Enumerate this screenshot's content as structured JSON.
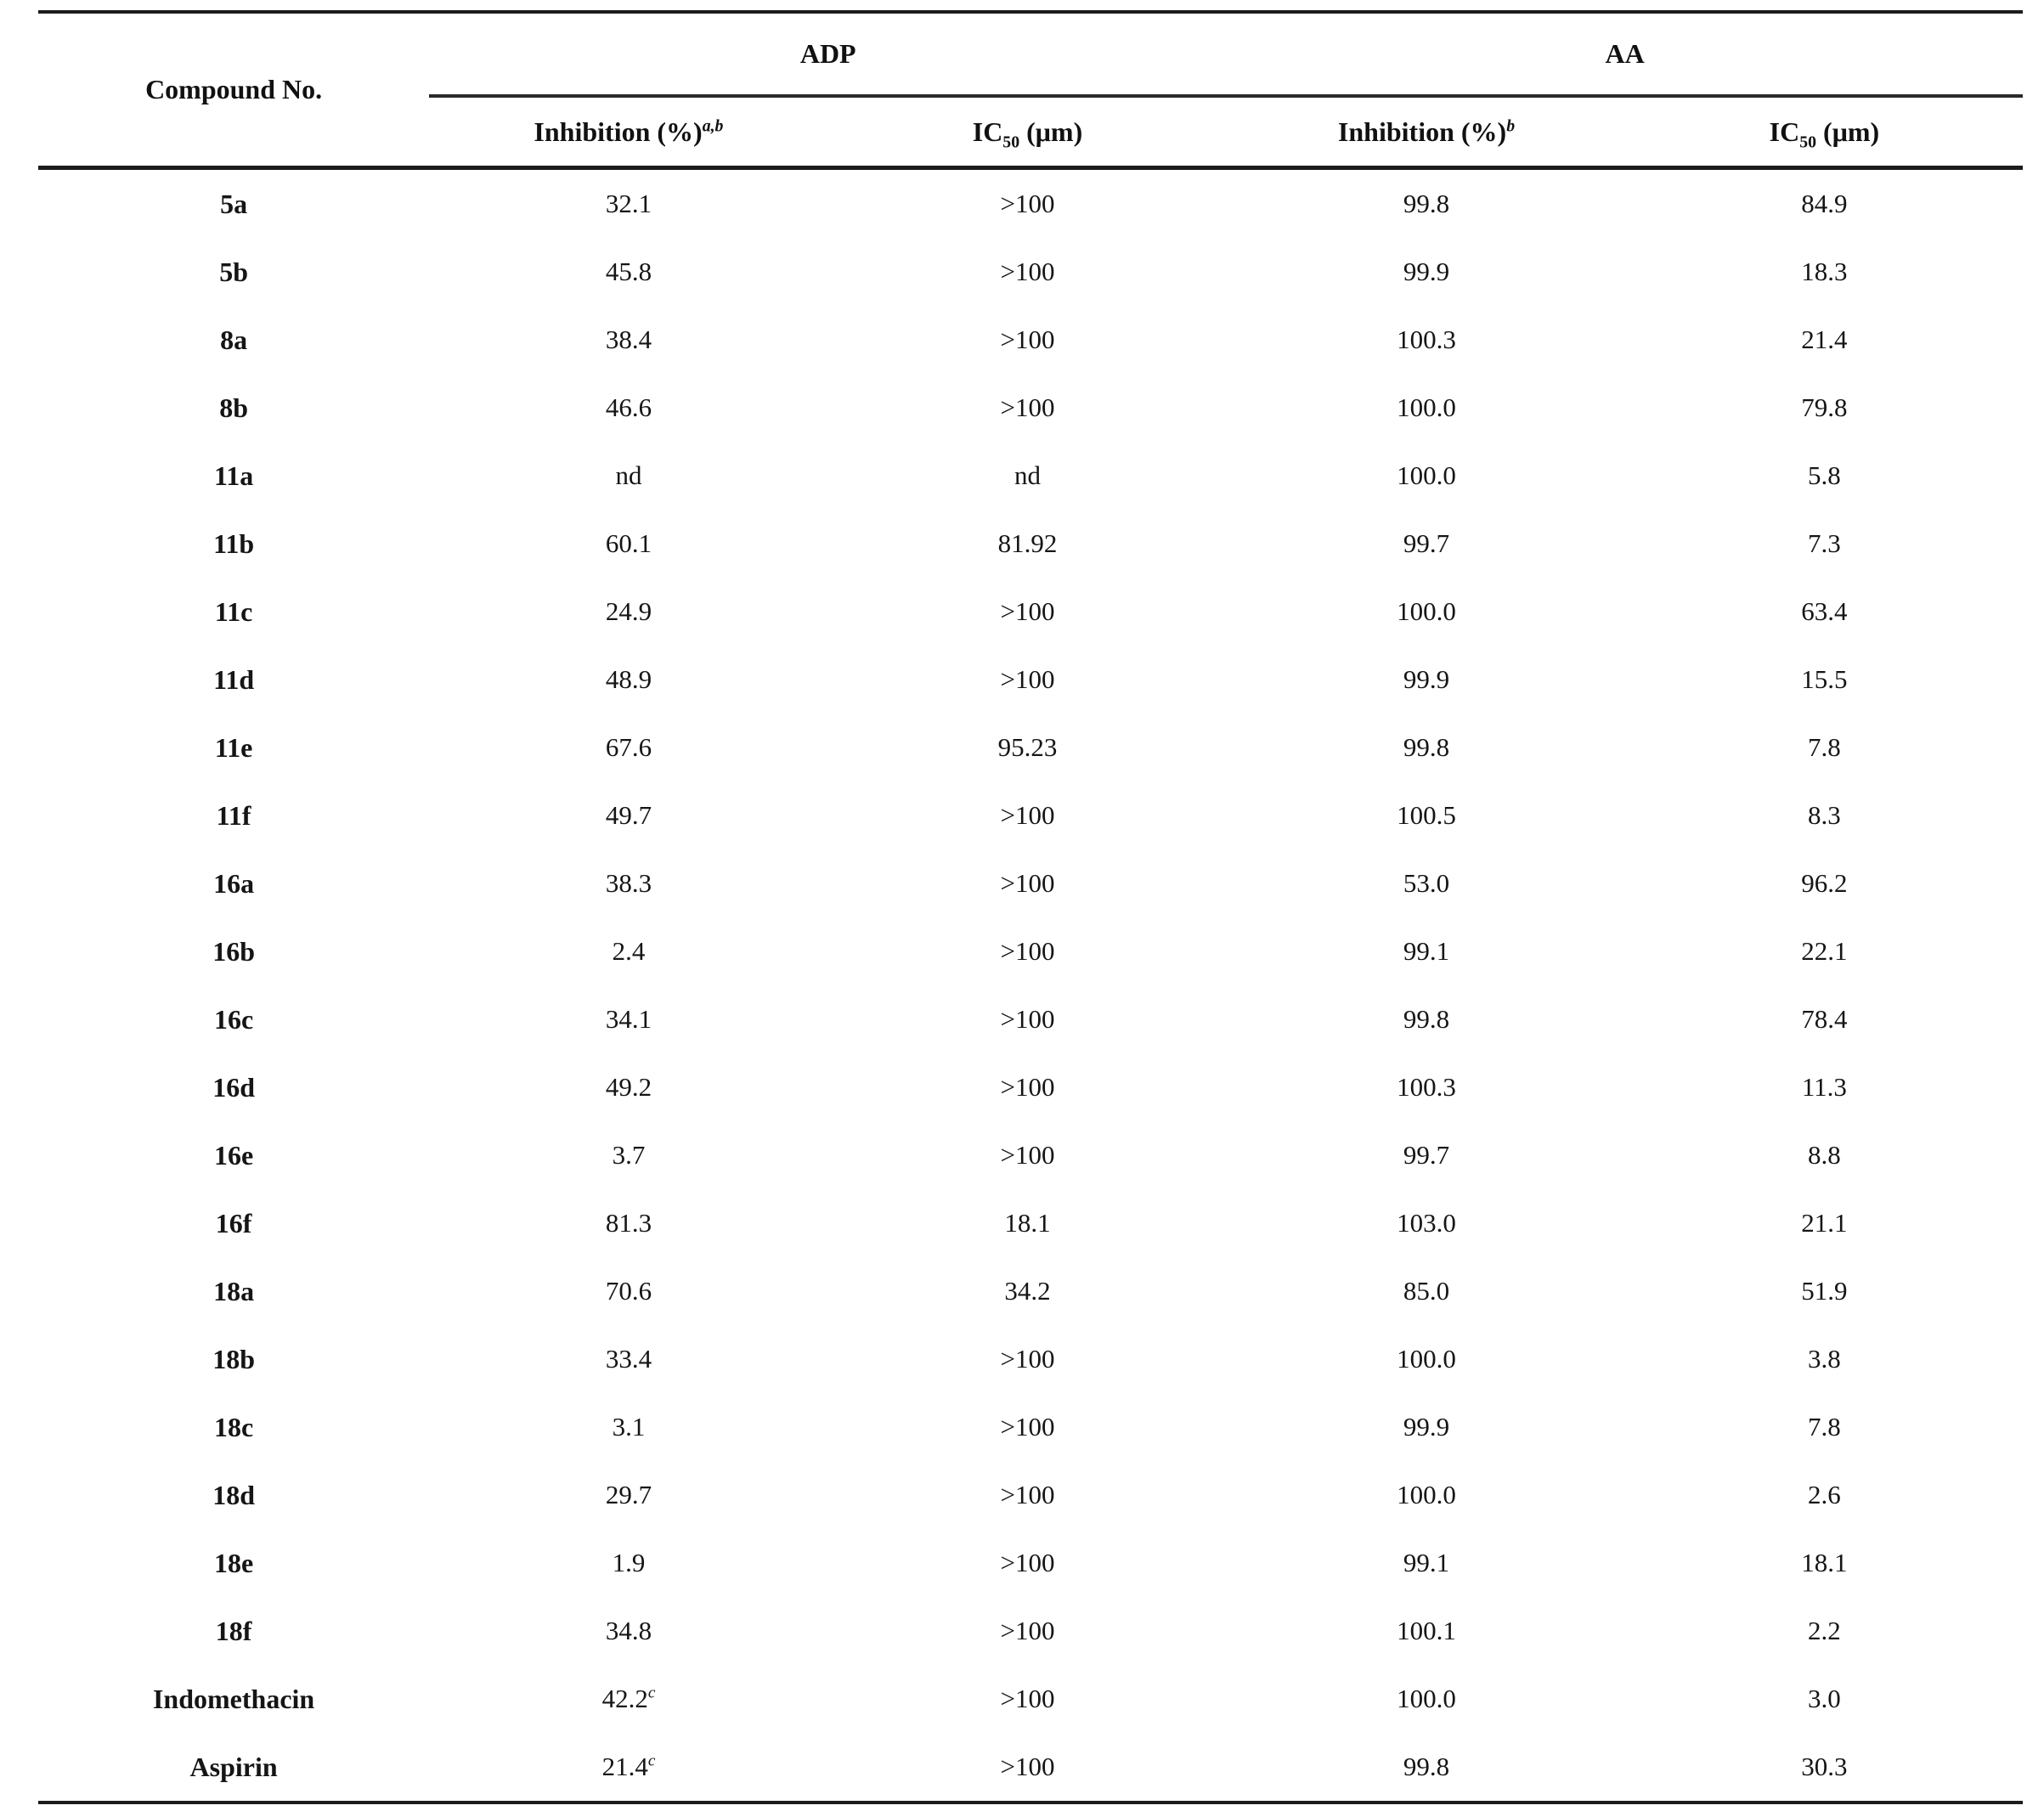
{
  "table": {
    "header": {
      "compound": "Compound No.",
      "group1": "ADP",
      "group2": "AA"
    },
    "subheaders": [
      {
        "base": "Inhibition (%)",
        "sup": "a,b"
      },
      {
        "base": "IC",
        "sub": "50",
        "rest": " (μm)"
      },
      {
        "base": "Inhibition (%)",
        "sup": "b"
      },
      {
        "base": "IC",
        "sub": "50",
        "rest": " (μm)"
      }
    ],
    "rows": [
      [
        "5a",
        "32.1",
        ">100",
        "99.8",
        "84.9"
      ],
      [
        "5b",
        "45.8",
        ">100",
        "99.9",
        "18.3"
      ],
      [
        "8a",
        "38.4",
        ">100",
        "100.3",
        "21.4"
      ],
      [
        "8b",
        "46.6",
        ">100",
        "100.0",
        "79.8"
      ],
      [
        "11a",
        "nd",
        "nd",
        "100.0",
        "5.8"
      ],
      [
        "11b",
        "60.1",
        "81.92",
        "99.7",
        "7.3"
      ],
      [
        "11c",
        "24.9",
        ">100",
        "100.0",
        "63.4"
      ],
      [
        "11d",
        "48.9",
        ">100",
        "99.9",
        "15.5"
      ],
      [
        "11e",
        "67.6",
        "95.23",
        "99.8",
        "7.8"
      ],
      [
        "11f",
        "49.7",
        ">100",
        "100.5",
        "8.3"
      ],
      [
        "16a",
        "38.3",
        ">100",
        "53.0",
        "96.2"
      ],
      [
        "16b",
        "2.4",
        ">100",
        "99.1",
        "22.1"
      ],
      [
        "16c",
        "34.1",
        ">100",
        "99.8",
        "78.4"
      ],
      [
        "16d",
        "49.2",
        ">100",
        "100.3",
        "11.3"
      ],
      [
        "16e",
        "3.7",
        ">100",
        "99.7",
        "8.8"
      ],
      [
        "16f",
        "81.3",
        "18.1",
        "103.0",
        "21.1"
      ],
      [
        "18a",
        "70.6",
        "34.2",
        "85.0",
        "51.9"
      ],
      [
        "18b",
        "33.4",
        ">100",
        "100.0",
        "3.8"
      ],
      [
        "18c",
        "3.1",
        ">100",
        "99.9",
        "7.8"
      ],
      [
        "18d",
        "29.7",
        ">100",
        "100.0",
        "2.6"
      ],
      [
        "18e",
        "1.9",
        ">100",
        "99.1",
        "18.1"
      ],
      [
        "18f",
        "34.8",
        ">100",
        "100.1",
        "2.2"
      ],
      [
        "Indomethacin",
        "42.2^c",
        ">100",
        "100.0",
        "3.0"
      ],
      [
        "Aspirin",
        "21.4^c",
        ">100",
        "99.8",
        "30.3"
      ]
    ]
  }
}
